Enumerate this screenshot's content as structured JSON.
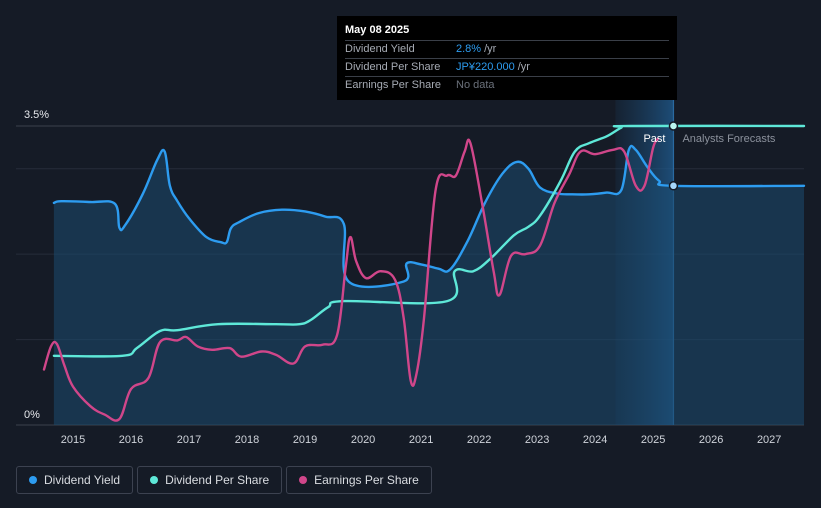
{
  "tooltip": {
    "date": "May 08 2025",
    "rows": [
      {
        "label": "Dividend Yield",
        "value": "2.8%",
        "unit": "/yr"
      },
      {
        "label": "Dividend Per Share",
        "value": "JP¥220.000",
        "unit": "/yr"
      },
      {
        "label": "Earnings Per Share",
        "value": "No data",
        "unit": ""
      }
    ]
  },
  "legend": [
    {
      "label": "Dividend Yield",
      "color": "#2d9cf0"
    },
    {
      "label": "Dividend Per Share",
      "color": "#5ee8d8"
    },
    {
      "label": "Earnings Per Share",
      "color": "#d0468a"
    }
  ],
  "regions": {
    "past": "Past",
    "forecast": "Analysts Forecasts"
  },
  "chart_data": {
    "type": "line",
    "x_ticks": [
      "2015",
      "2016",
      "2017",
      "2018",
      "2019",
      "2020",
      "2021",
      "2022",
      "2023",
      "2024",
      "2025",
      "2026",
      "2027"
    ],
    "y_ticks": [
      "0%",
      "3.5%"
    ],
    "ylim": [
      0,
      3.5
    ],
    "xlim": [
      2014.5,
      2027.6
    ],
    "highlight_date": 2025.35,
    "forecast_start": 2025.35,
    "grid": true,
    "colors": {
      "yield": "#2d9cf0",
      "dps": "#5ee8d8",
      "eps": "#d0468a"
    },
    "series": [
      {
        "name": "Dividend Yield",
        "key": "yield",
        "fill": true,
        "points": [
          [
            2014.67,
            2.6
          ],
          [
            2014.8,
            2.62
          ],
          [
            2015.3,
            2.61
          ],
          [
            2015.72,
            2.59
          ],
          [
            2015.8,
            2.31
          ],
          [
            2015.9,
            2.34
          ],
          [
            2016.2,
            2.7
          ],
          [
            2016.45,
            3.1
          ],
          [
            2016.58,
            3.2
          ],
          [
            2016.67,
            2.8
          ],
          [
            2016.8,
            2.62
          ],
          [
            2017.0,
            2.42
          ],
          [
            2017.3,
            2.2
          ],
          [
            2017.55,
            2.14
          ],
          [
            2017.65,
            2.14
          ],
          [
            2017.72,
            2.3
          ],
          [
            2017.85,
            2.37
          ],
          [
            2018.2,
            2.48
          ],
          [
            2018.6,
            2.52
          ],
          [
            2019.0,
            2.5
          ],
          [
            2019.35,
            2.44
          ],
          [
            2019.67,
            2.35
          ],
          [
            2019.75,
            1.68
          ],
          [
            2020.7,
            1.68
          ],
          [
            2020.75,
            1.89
          ],
          [
            2021.0,
            1.88
          ],
          [
            2021.3,
            1.83
          ],
          [
            2021.5,
            1.82
          ],
          [
            2021.8,
            2.15
          ],
          [
            2022.1,
            2.6
          ],
          [
            2022.4,
            2.94
          ],
          [
            2022.65,
            3.08
          ],
          [
            2022.85,
            3.0
          ],
          [
            2023.05,
            2.78
          ],
          [
            2023.35,
            2.71
          ],
          [
            2023.6,
            2.7
          ],
          [
            2023.9,
            2.7
          ],
          [
            2024.2,
            2.72
          ],
          [
            2024.45,
            2.75
          ],
          [
            2024.58,
            3.22
          ],
          [
            2024.7,
            3.22
          ],
          [
            2024.9,
            3.02
          ],
          [
            2025.1,
            2.86
          ],
          [
            2025.35,
            2.8
          ],
          [
            2027.6,
            2.8
          ]
        ]
      },
      {
        "name": "Dividend Per Share",
        "key": "dps",
        "fill": false,
        "points": [
          [
            2014.67,
            0.81
          ],
          [
            2015.85,
            0.81
          ],
          [
            2016.1,
            0.9
          ],
          [
            2016.5,
            1.1
          ],
          [
            2016.8,
            1.11
          ],
          [
            2017.5,
            1.18
          ],
          [
            2018.5,
            1.18
          ],
          [
            2018.9,
            1.18
          ],
          [
            2019.1,
            1.23
          ],
          [
            2019.4,
            1.38
          ],
          [
            2019.67,
            1.45
          ],
          [
            2021.45,
            1.45
          ],
          [
            2021.58,
            1.8
          ],
          [
            2021.9,
            1.8
          ],
          [
            2022.2,
            1.95
          ],
          [
            2022.6,
            2.22
          ],
          [
            2022.85,
            2.32
          ],
          [
            2023.05,
            2.45
          ],
          [
            2023.4,
            2.85
          ],
          [
            2023.65,
            3.2
          ],
          [
            2023.9,
            3.3
          ],
          [
            2024.2,
            3.38
          ],
          [
            2024.45,
            3.48
          ],
          [
            2024.6,
            3.5
          ],
          [
            2027.6,
            3.5
          ]
        ]
      },
      {
        "name": "Earnings Per Share",
        "key": "eps",
        "fill": false,
        "points": [
          [
            2014.5,
            0.65
          ],
          [
            2014.62,
            0.92
          ],
          [
            2014.72,
            0.95
          ],
          [
            2014.85,
            0.7
          ],
          [
            2015.0,
            0.45
          ],
          [
            2015.3,
            0.22
          ],
          [
            2015.55,
            0.12
          ],
          [
            2015.8,
            0.07
          ],
          [
            2016.0,
            0.42
          ],
          [
            2016.3,
            0.55
          ],
          [
            2016.5,
            0.97
          ],
          [
            2016.8,
            0.99
          ],
          [
            2016.95,
            1.03
          ],
          [
            2017.15,
            0.92
          ],
          [
            2017.4,
            0.88
          ],
          [
            2017.7,
            0.9
          ],
          [
            2017.9,
            0.8
          ],
          [
            2018.25,
            0.86
          ],
          [
            2018.5,
            0.82
          ],
          [
            2018.8,
            0.72
          ],
          [
            2019.0,
            0.92
          ],
          [
            2019.3,
            0.94
          ],
          [
            2019.55,
            1.05
          ],
          [
            2019.7,
            1.85
          ],
          [
            2019.78,
            2.2
          ],
          [
            2019.88,
            1.92
          ],
          [
            2020.05,
            1.72
          ],
          [
            2020.3,
            1.8
          ],
          [
            2020.55,
            1.7
          ],
          [
            2020.7,
            1.25
          ],
          [
            2020.82,
            0.52
          ],
          [
            2020.92,
            0.6
          ],
          [
            2021.05,
            1.25
          ],
          [
            2021.25,
            2.75
          ],
          [
            2021.45,
            2.92
          ],
          [
            2021.6,
            2.92
          ],
          [
            2021.75,
            3.2
          ],
          [
            2021.85,
            3.3
          ],
          [
            2022.05,
            2.6
          ],
          [
            2022.25,
            1.8
          ],
          [
            2022.35,
            1.52
          ],
          [
            2022.55,
            1.98
          ],
          [
            2022.8,
            2.0
          ],
          [
            2023.05,
            2.1
          ],
          [
            2023.3,
            2.6
          ],
          [
            2023.55,
            2.93
          ],
          [
            2023.75,
            3.2
          ],
          [
            2024.0,
            3.17
          ],
          [
            2024.3,
            3.22
          ],
          [
            2024.5,
            3.2
          ],
          [
            2024.7,
            2.8
          ],
          [
            2024.85,
            2.8
          ],
          [
            2025.0,
            3.25
          ],
          [
            2025.08,
            3.35
          ]
        ]
      }
    ]
  }
}
